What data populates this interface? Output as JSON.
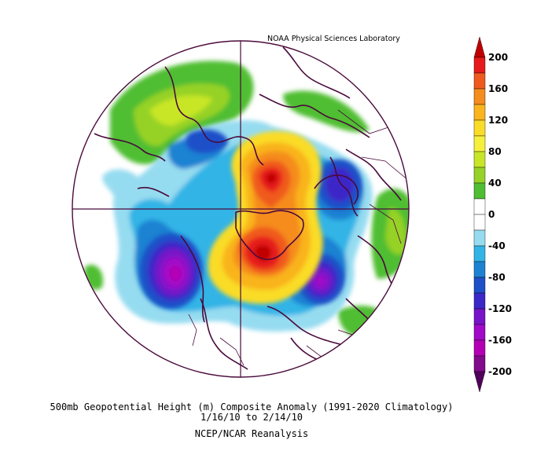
{
  "credit": "NOAA Physical Sciences Laboratory",
  "caption": {
    "line1": "500mb Geopotential Height (m) Composite Anomaly (1991-2020 Climatology)",
    "line2": "1/16/10  to 2/14/10",
    "line3": "NCEP/NCAR Reanalysis"
  },
  "colorbar": {
    "ticks": [
      "200",
      "160",
      "120",
      "80",
      "40",
      "0",
      "-40",
      "-80",
      "-120",
      "-160",
      "-200"
    ],
    "colors": [
      "#c00000",
      "#e61a1a",
      "#f05a1e",
      "#f58c1e",
      "#f9b41e",
      "#fadc28",
      "#f5f03c",
      "#c8e628",
      "#96d228",
      "#50be32",
      "#ffffff",
      "#ffffff",
      "#96dcf0",
      "#32b4e6",
      "#1e82d2",
      "#1e50c8",
      "#3c28c8",
      "#7814c8",
      "#a00ac8",
      "#b400b4",
      "#820a8c",
      "#50005a"
    ]
  },
  "map": {
    "projection": "polar stereographic, north pole",
    "features": [
      {
        "label": "positive anomaly core near Greenland",
        "sign": "+",
        "magnitude": 200
      },
      {
        "label": "positive anomaly core over Arctic/Siberia",
        "sign": "+",
        "magnitude": 200
      },
      {
        "label": "negative anomaly over North Pacific",
        "sign": "-",
        "magnitude": 200
      },
      {
        "label": "negative anomaly over North Atlantic",
        "sign": "-",
        "magnitude": 160
      },
      {
        "label": "negative anomaly over Scandinavia/Russia",
        "sign": "-",
        "magnitude": 100
      }
    ]
  }
}
